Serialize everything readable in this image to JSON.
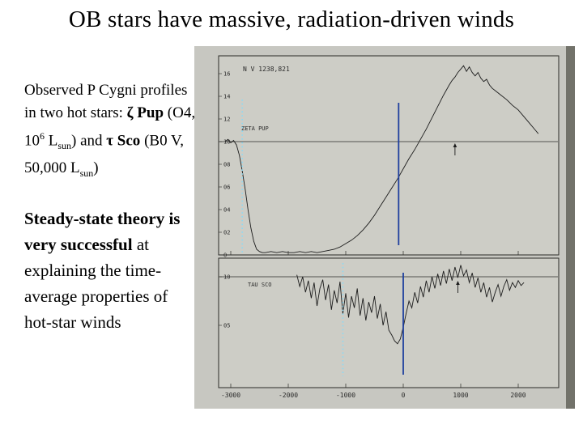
{
  "slide": {
    "title": "OB stars have massive, radiation-driven winds"
  },
  "intro": {
    "s1": "Observed P Cygni profiles in two hot stars: ",
    "zeta": "ζ Pup",
    "s2": " (O4, 10",
    "sup6": "6",
    "s3": " L",
    "sub_sun1": "sun",
    "s4": ") and ",
    "tau": "τ Sco",
    "s5": " (B0 V, 50,000 L",
    "sub_sun2": "sun",
    "s6": ")"
  },
  "claim": {
    "bold": "Steady-state theory is very successful",
    "rest": " at explaining the time-average properties of hot-star winds"
  },
  "figure": {
    "colors": {
      "dotted": "#8fd9f2",
      "solid": "#1f3f9e",
      "ink": "#2b2b28",
      "scan_bg": "#c7c7c1",
      "panel_bg": "#cdcdc6",
      "edge_shadow": "#72726a",
      "spectrum": "#1c1c1c"
    }
  },
  "chart_data": [
    {
      "type": "line",
      "title": "N V 1238,821",
      "star": "ZETA PUP",
      "xlim": [
        -3100,
        2700
      ],
      "ylim": [
        0,
        1.76
      ],
      "continuum": 1.0,
      "x_ticks": [
        {
          "label": "-3000",
          "value": -3000
        },
        {
          "label": "-2000",
          "value": -2000
        },
        {
          "label": "-1000",
          "value": -1000
        },
        {
          "label": "0",
          "value": 0
        },
        {
          "label": "1000",
          "value": 1000
        },
        {
          "label": "2000",
          "value": 2000
        }
      ],
      "y_ticks": [
        {
          "label": "16",
          "value": 1.6
        },
        {
          "label": "14",
          "value": 1.4
        },
        {
          "label": "12",
          "value": 1.2
        },
        {
          "label": "10",
          "value": 1.0
        },
        {
          "label": "08",
          "value": 0.8
        },
        {
          "label": "06",
          "value": 0.6
        },
        {
          "label": "04",
          "value": 0.4
        },
        {
          "label": "02",
          "value": 0.2
        },
        {
          "label": "0",
          "value": 0.0
        }
      ],
      "annotations": [
        {
          "kind": "dotted-line",
          "v": -2800
        },
        {
          "kind": "solid-line",
          "v": -80
        },
        {
          "kind": "arrow",
          "v": 900
        }
      ],
      "x": [
        -3100,
        -3050,
        -3000,
        -2950,
        -2900,
        -2850,
        -2800,
        -2750,
        -2700,
        -2650,
        -2600,
        -2550,
        -2500,
        -2450,
        -2400,
        -2300,
        -2200,
        -2100,
        -2000,
        -1900,
        -1800,
        -1700,
        -1600,
        -1500,
        -1400,
        -1300,
        -1200,
        -1100,
        -1000,
        -900,
        -800,
        -700,
        -600,
        -500,
        -400,
        -300,
        -200,
        -100,
        0,
        100,
        200,
        300,
        400,
        500,
        600,
        700,
        800,
        850,
        900,
        950,
        1000,
        1050,
        1100,
        1150,
        1200,
        1250,
        1300,
        1350,
        1400,
        1450,
        1500,
        1550,
        1600,
        1700,
        1800,
        1900,
        2000,
        2100,
        2200,
        2300,
        2350
      ],
      "y": [
        1.0,
        1.02,
        0.99,
        1.01,
        0.97,
        0.88,
        0.74,
        0.58,
        0.4,
        0.24,
        0.12,
        0.05,
        0.03,
        0.02,
        0.02,
        0.03,
        0.02,
        0.03,
        0.02,
        0.02,
        0.03,
        0.02,
        0.03,
        0.02,
        0.03,
        0.04,
        0.05,
        0.07,
        0.1,
        0.13,
        0.17,
        0.22,
        0.28,
        0.35,
        0.43,
        0.51,
        0.59,
        0.67,
        0.76,
        0.85,
        0.93,
        1.02,
        1.11,
        1.21,
        1.31,
        1.41,
        1.5,
        1.54,
        1.57,
        1.61,
        1.64,
        1.67,
        1.62,
        1.66,
        1.61,
        1.58,
        1.61,
        1.56,
        1.53,
        1.55,
        1.5,
        1.47,
        1.45,
        1.41,
        1.37,
        1.32,
        1.28,
        1.22,
        1.16,
        1.1,
        1.07
      ]
    },
    {
      "type": "line",
      "title": "",
      "star": "TAU SCO",
      "xlim": [
        -3100,
        2700
      ],
      "ylim": [
        0,
        1.3
      ],
      "continuum": 1.0,
      "y_ticks": [
        {
          "label": "10",
          "value": 1.0
        },
        {
          "label": "05",
          "value": 0.5
        }
      ],
      "annotations": [
        {
          "kind": "dotted-line",
          "v": -1050
        },
        {
          "kind": "solid-line",
          "v": 0
        },
        {
          "kind": "arrow",
          "v": 950
        }
      ],
      "x": [
        -1850,
        -1800,
        -1750,
        -1700,
        -1650,
        -1600,
        -1550,
        -1500,
        -1450,
        -1400,
        -1350,
        -1300,
        -1250,
        -1200,
        -1150,
        -1100,
        -1050,
        -1000,
        -950,
        -900,
        -850,
        -800,
        -750,
        -700,
        -650,
        -600,
        -550,
        -500,
        -450,
        -400,
        -350,
        -300,
        -250,
        -200,
        -150,
        -100,
        -50,
        0,
        50,
        100,
        150,
        200,
        250,
        300,
        350,
        400,
        450,
        500,
        550,
        600,
        650,
        700,
        750,
        800,
        850,
        900,
        950,
        1000,
        1050,
        1100,
        1150,
        1200,
        1250,
        1300,
        1350,
        1400,
        1450,
        1500,
        1550,
        1600,
        1650,
        1700,
        1750,
        1800,
        1850,
        1900,
        1950,
        2000,
        2050,
        2100
      ],
      "y": [
        1.02,
        0.9,
        1.0,
        0.84,
        0.96,
        0.78,
        0.94,
        0.7,
        0.88,
        0.97,
        0.76,
        0.92,
        0.66,
        0.86,
        0.73,
        0.95,
        0.62,
        0.83,
        0.58,
        0.8,
        0.68,
        0.88,
        0.6,
        0.78,
        0.55,
        0.74,
        0.63,
        0.8,
        0.57,
        0.72,
        0.5,
        0.64,
        0.45,
        0.4,
        0.34,
        0.31,
        0.36,
        0.48,
        0.62,
        0.75,
        0.68,
        0.84,
        0.73,
        0.9,
        0.79,
        0.96,
        0.84,
        1.0,
        0.88,
        1.03,
        0.91,
        1.06,
        0.93,
        1.08,
        0.96,
        1.1,
        0.99,
        1.12,
        1.01,
        1.07,
        0.94,
        1.04,
        0.89,
        0.99,
        0.84,
        0.94,
        0.79,
        0.89,
        0.74,
        0.84,
        0.92,
        0.8,
        0.9,
        0.97,
        0.86,
        0.94,
        0.89,
        0.96,
        0.91,
        0.94
      ]
    }
  ]
}
